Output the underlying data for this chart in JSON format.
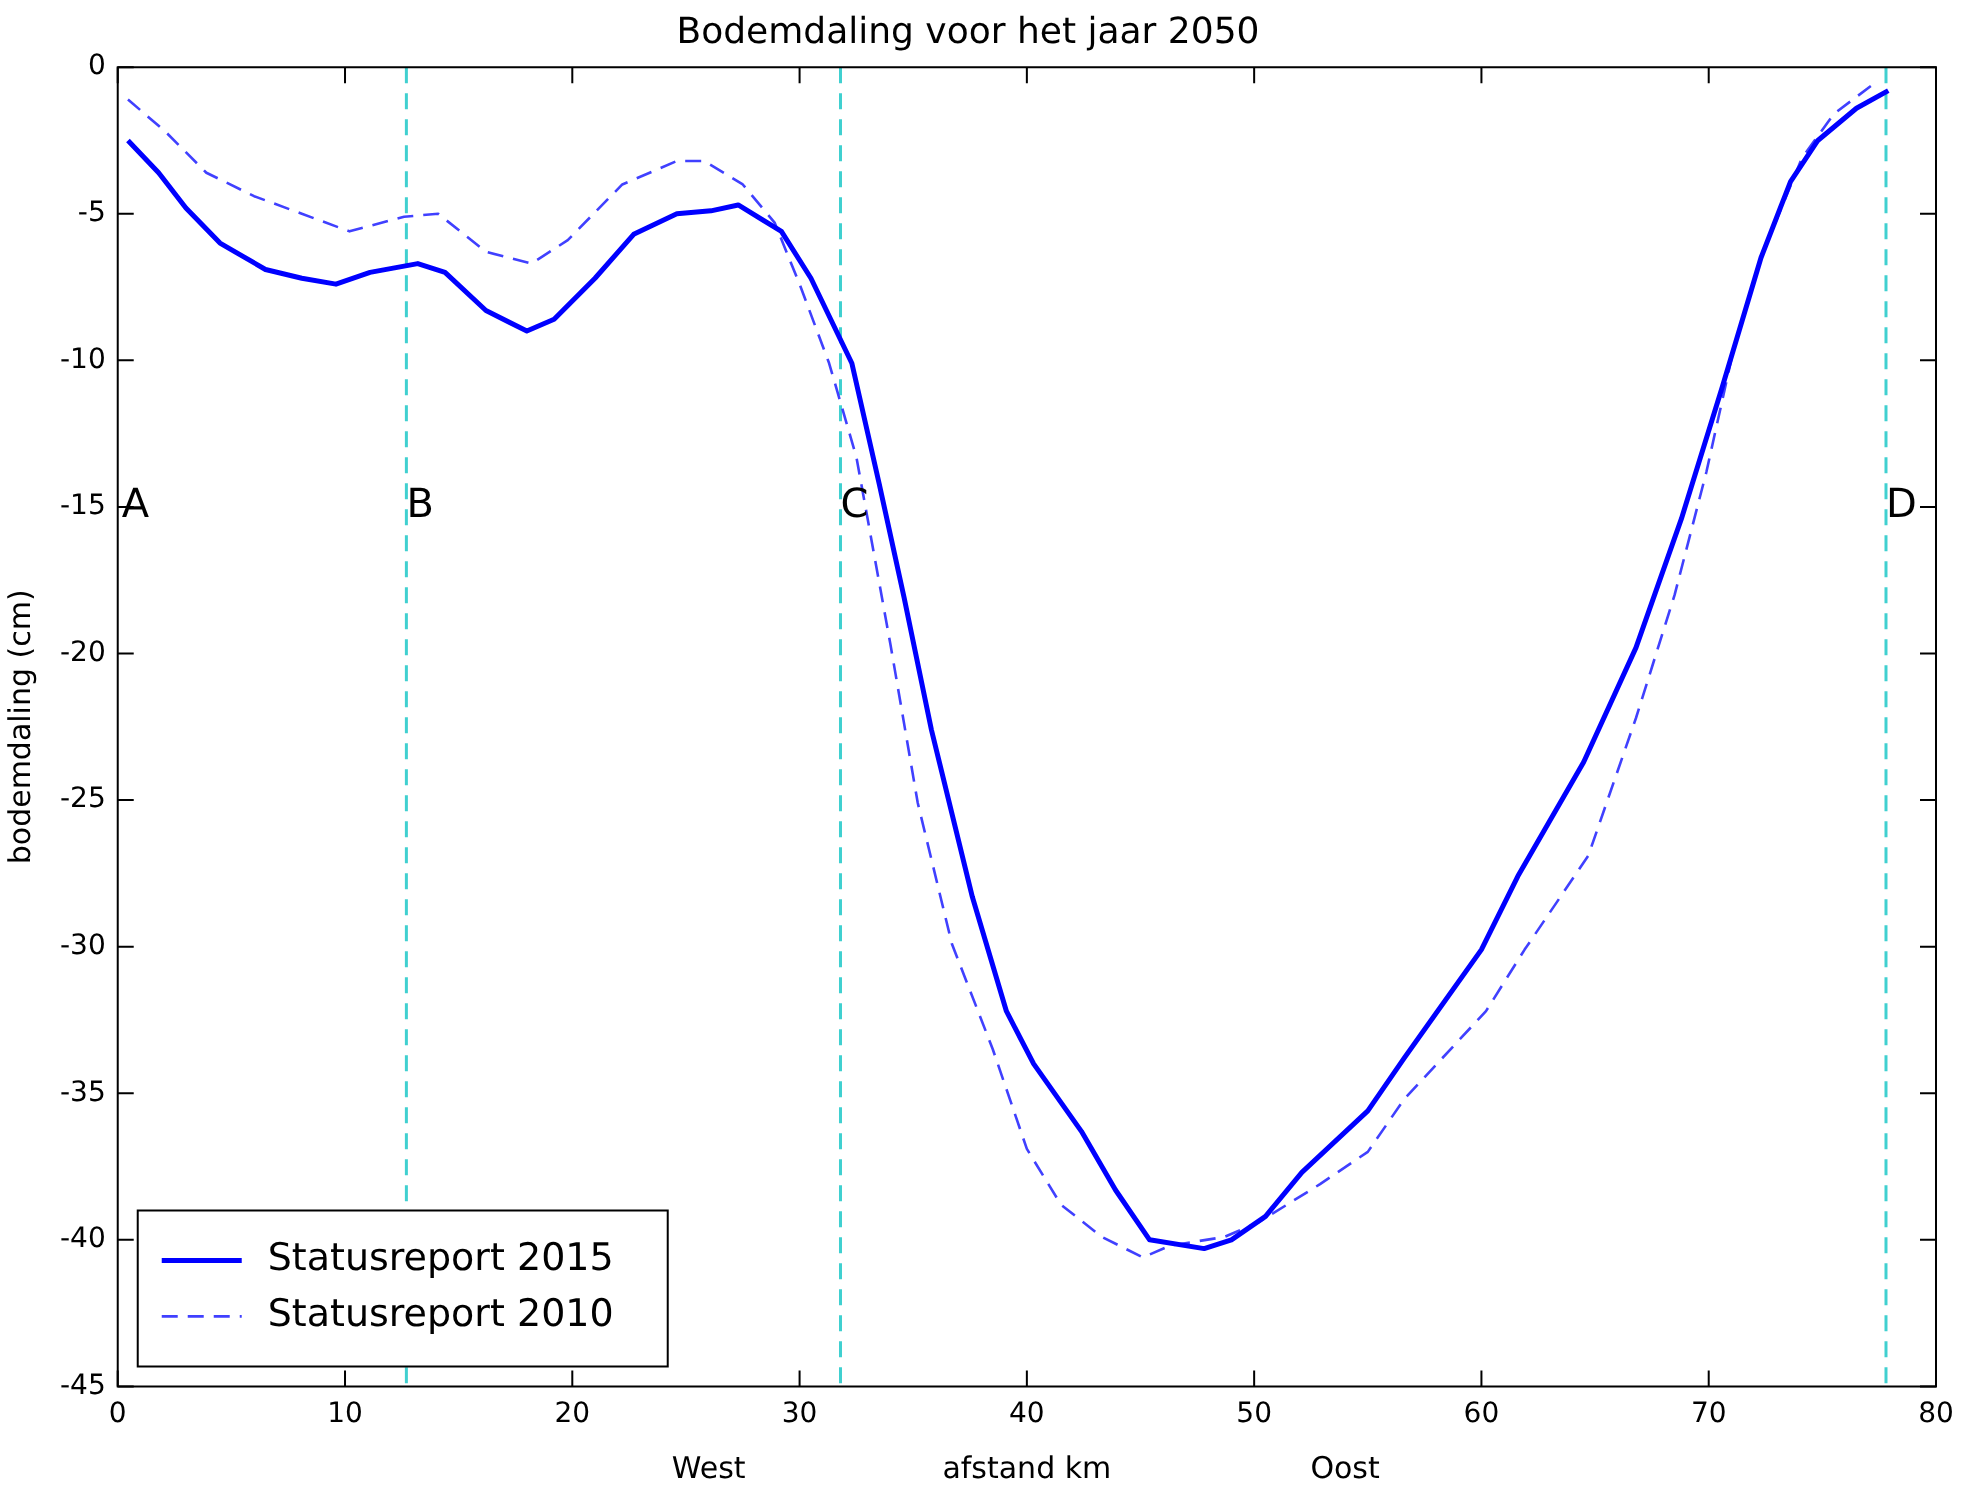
{
  "chart_data": {
    "type": "line",
    "title": "Bodemdaling voor het jaar 2050",
    "xlabel": "afstand km",
    "ylabel": "bodemdaling (cm)",
    "xlim": [
      0,
      80
    ],
    "xticks": [
      0,
      10,
      20,
      30,
      40,
      50,
      60,
      70,
      80
    ],
    "ylim": [
      -45,
      0
    ],
    "yticks": [
      -45,
      -40,
      -35,
      -30,
      -25,
      -20,
      -15,
      -10,
      -5,
      0
    ],
    "grid": false,
    "legend": "bottom left",
    "marker": "none",
    "series": [
      {
        "name": "Statusreport 2015",
        "color": "#0000ff",
        "line_style": "solid",
        "x": [
          0.45,
          1.8,
          3.0,
          4.5,
          6.5,
          8.1,
          9.6,
          11.1,
          13.2,
          14.4,
          16.2,
          18.0,
          19.2,
          21.0,
          22.7,
          24.6,
          26.1,
          27.3,
          29.2,
          30.5,
          32.3,
          33.5,
          34.6,
          35.8,
          37.6,
          39.1,
          40.3,
          42.4,
          43.9,
          45.4,
          47.8,
          49.0,
          50.5,
          52.1,
          55.0,
          56.6,
          60.0,
          61.6,
          64.5,
          66.8,
          68.8,
          70.6,
          72.3,
          73.6,
          74.8,
          76.5,
          77.9
        ],
        "values": [
          -2.5,
          -3.6,
          -4.8,
          -6.0,
          -6.9,
          -7.2,
          -7.4,
          -7.0,
          -6.7,
          -7.0,
          -8.3,
          -9.0,
          -8.6,
          -7.2,
          -5.7,
          -5.0,
          -4.9,
          -4.7,
          -5.6,
          -7.2,
          -10.1,
          -14.2,
          -18.1,
          -22.6,
          -28.3,
          -32.2,
          -34.0,
          -36.3,
          -38.3,
          -40.0,
          -40.3,
          -40.0,
          -39.2,
          -37.7,
          -35.6,
          -33.8,
          -30.1,
          -27.6,
          -23.7,
          -19.8,
          -15.4,
          -10.9,
          -6.5,
          -3.9,
          -2.5,
          -1.4,
          -0.8
        ]
      },
      {
        "name": "Statusreport 2010",
        "color": "#4040ff",
        "line_style": "dashed",
        "x": [
          0.45,
          2.1,
          3.9,
          6.0,
          8.1,
          10.2,
          12.6,
          14.1,
          16.2,
          18.2,
          19.8,
          22.2,
          24.6,
          25.8,
          27.5,
          28.9,
          30.0,
          31.3,
          32.5,
          34.0,
          35.2,
          36.7,
          38.5,
          40.0,
          41.5,
          43.3,
          45.1,
          46.3,
          48.7,
          50.2,
          52.9,
          55.0,
          56.6,
          60.2,
          61.9,
          64.7,
          66.8,
          68.5,
          69.9,
          71.1,
          72.3,
          74.1,
          75.5,
          77.2
        ],
        "values": [
          -1.1,
          -2.2,
          -3.6,
          -4.4,
          -5.0,
          -5.6,
          -5.1,
          -5.0,
          -6.3,
          -6.7,
          -5.9,
          -4.0,
          -3.2,
          -3.2,
          -4.0,
          -5.3,
          -7.4,
          -10.1,
          -13.3,
          -19.7,
          -25.1,
          -29.9,
          -33.5,
          -36.9,
          -38.8,
          -39.9,
          -40.6,
          -40.2,
          -39.9,
          -39.4,
          -38.1,
          -37.0,
          -35.2,
          -32.2,
          -30.1,
          -26.9,
          -22.2,
          -18.0,
          -13.8,
          -9.6,
          -6.5,
          -3.1,
          -1.6,
          -0.6
        ]
      }
    ],
    "ref_lines": [
      {
        "axis": "x",
        "value": 12.7,
        "color": "#40d0d0",
        "line_style": "dashed"
      },
      {
        "axis": "x",
        "value": 31.8,
        "color": "#40d0d0",
        "line_style": "dashed"
      },
      {
        "axis": "x",
        "value": 77.8,
        "color": "#40d0d0",
        "line_style": "dashed"
      }
    ],
    "annotations": [
      "A",
      {
        "text": "B",
        "x": 12.7,
        "y": -15
      },
      {
        "text": "C",
        "x": 31.8,
        "y": -15
      },
      {
        "text": "D",
        "x": 77.8,
        "y": -15
      },
      "West",
      "Oost"
    ]
  }
}
